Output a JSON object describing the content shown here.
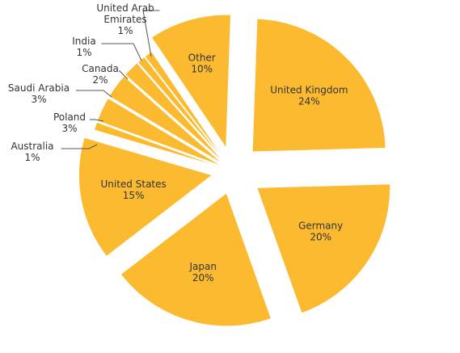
{
  "chart_data": {
    "type": "pie",
    "exploded": true,
    "slice_color": "#FBBA2F",
    "slice_edge": "#E0A020",
    "slices": [
      {
        "label": "United Kingdom",
        "value": 24,
        "value_text": "24%"
      },
      {
        "label": "Germany",
        "value": 20,
        "value_text": "20%"
      },
      {
        "label": "Japan",
        "value": 20,
        "value_text": "20%"
      },
      {
        "label": "United States",
        "value": 15,
        "value_text": "15%"
      },
      {
        "label": "Australia",
        "value": 1,
        "value_text": "1%"
      },
      {
        "label": "Poland",
        "value": 3,
        "value_text": "3%"
      },
      {
        "label": "Saudi Arabia",
        "value": 3,
        "value_text": "3%"
      },
      {
        "label": "Canada",
        "value": 2,
        "value_text": "2%"
      },
      {
        "label": "India",
        "value": 1,
        "value_text": "1%"
      },
      {
        "label": "United Arab Emirates",
        "value": 1,
        "value_text": "1%"
      },
      {
        "label": "Other",
        "value": 10,
        "value_text": "10%"
      }
    ]
  }
}
